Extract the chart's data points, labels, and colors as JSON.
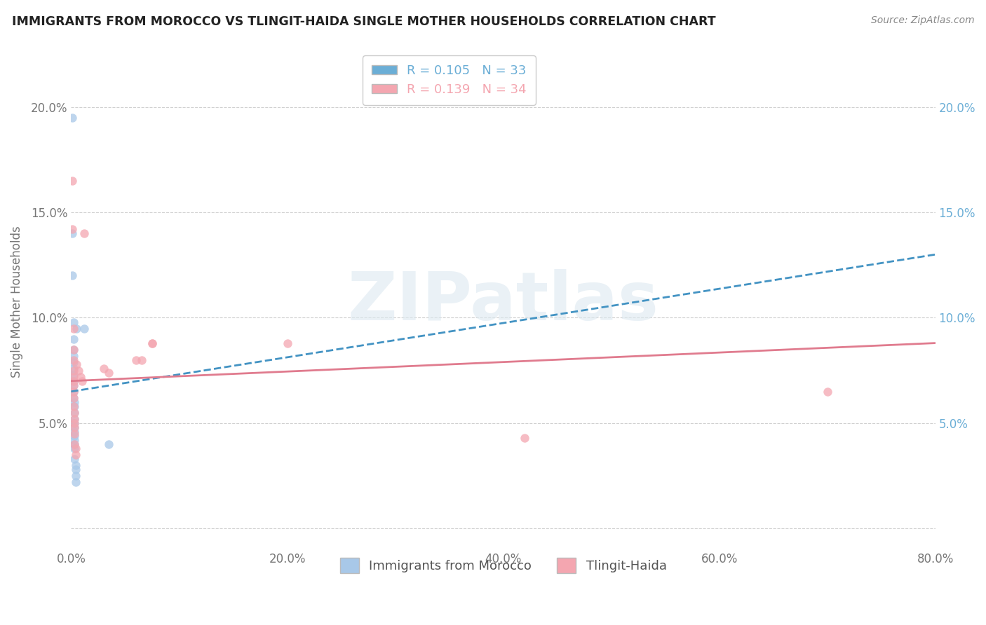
{
  "title": "IMMIGRANTS FROM MOROCCO VS TLINGIT-HAIDA SINGLE MOTHER HOUSEHOLDS CORRELATION CHART",
  "source": "Source: ZipAtlas.com",
  "ylabel": "Single Mother Households",
  "xlim": [
    0,
    0.8
  ],
  "ylim": [
    -0.01,
    0.225
  ],
  "xtick_labels": [
    "0.0%",
    "20.0%",
    "40.0%",
    "60.0%",
    "80.0%"
  ],
  "xtick_values": [
    0.0,
    0.2,
    0.4,
    0.6,
    0.8
  ],
  "ytick_values": [
    0.0,
    0.05,
    0.1,
    0.15,
    0.2
  ],
  "ytick_labels_left": [
    "",
    "5.0%",
    "10.0%",
    "15.0%",
    "20.0%"
  ],
  "ytick_labels_right": [
    "",
    "5.0%",
    "10.0%",
    "15.0%",
    "20.0%"
  ],
  "legend_R_N": [
    {
      "R": "0.105",
      "N": "33",
      "color": "#6baed6"
    },
    {
      "R": "0.139",
      "N": "34",
      "color": "#f4a6b0"
    }
  ],
  "morocco_color": "#a8c8e8",
  "tlingit_color": "#f4a6b0",
  "morocco_line_color": "#4393c3",
  "tlingit_line_color": "#e07b8e",
  "right_axis_color": "#6baed6",
  "watermark_color": "#dce8f0",
  "watermark_text": "ZIPatlas",
  "morocco_trend": [
    0.065,
    0.13
  ],
  "tlingit_trend": [
    0.07,
    0.088
  ],
  "morocco_points": [
    [
      0.001,
      0.195
    ],
    [
      0.001,
      0.14
    ],
    [
      0.001,
      0.12
    ],
    [
      0.002,
      0.098
    ],
    [
      0.002,
      0.09
    ],
    [
      0.002,
      0.085
    ],
    [
      0.002,
      0.082
    ],
    [
      0.002,
      0.079
    ],
    [
      0.002,
      0.076
    ],
    [
      0.002,
      0.073
    ],
    [
      0.002,
      0.07
    ],
    [
      0.002,
      0.068
    ],
    [
      0.002,
      0.065
    ],
    [
      0.002,
      0.062
    ],
    [
      0.003,
      0.06
    ],
    [
      0.003,
      0.058
    ],
    [
      0.003,
      0.055
    ],
    [
      0.003,
      0.052
    ],
    [
      0.003,
      0.05
    ],
    [
      0.003,
      0.048
    ],
    [
      0.003,
      0.046
    ],
    [
      0.003,
      0.044
    ],
    [
      0.003,
      0.042
    ],
    [
      0.003,
      0.04
    ],
    [
      0.003,
      0.038
    ],
    [
      0.003,
      0.033
    ],
    [
      0.004,
      0.03
    ],
    [
      0.004,
      0.028
    ],
    [
      0.004,
      0.025
    ],
    [
      0.004,
      0.022
    ],
    [
      0.005,
      0.095
    ],
    [
      0.012,
      0.095
    ],
    [
      0.035,
      0.04
    ]
  ],
  "tlingit_points": [
    [
      0.001,
      0.165
    ],
    [
      0.001,
      0.142
    ],
    [
      0.002,
      0.095
    ],
    [
      0.002,
      0.085
    ],
    [
      0.002,
      0.08
    ],
    [
      0.002,
      0.075
    ],
    [
      0.002,
      0.072
    ],
    [
      0.002,
      0.07
    ],
    [
      0.002,
      0.068
    ],
    [
      0.002,
      0.065
    ],
    [
      0.002,
      0.062
    ],
    [
      0.002,
      0.058
    ],
    [
      0.003,
      0.055
    ],
    [
      0.003,
      0.052
    ],
    [
      0.003,
      0.05
    ],
    [
      0.003,
      0.048
    ],
    [
      0.003,
      0.045
    ],
    [
      0.003,
      0.04
    ],
    [
      0.004,
      0.038
    ],
    [
      0.004,
      0.035
    ],
    [
      0.005,
      0.078
    ],
    [
      0.007,
      0.075
    ],
    [
      0.009,
      0.072
    ],
    [
      0.01,
      0.07
    ],
    [
      0.012,
      0.14
    ],
    [
      0.03,
      0.076
    ],
    [
      0.035,
      0.074
    ],
    [
      0.06,
      0.08
    ],
    [
      0.065,
      0.08
    ],
    [
      0.075,
      0.088
    ],
    [
      0.075,
      0.088
    ],
    [
      0.2,
      0.088
    ],
    [
      0.42,
      0.043
    ],
    [
      0.7,
      0.065
    ]
  ]
}
